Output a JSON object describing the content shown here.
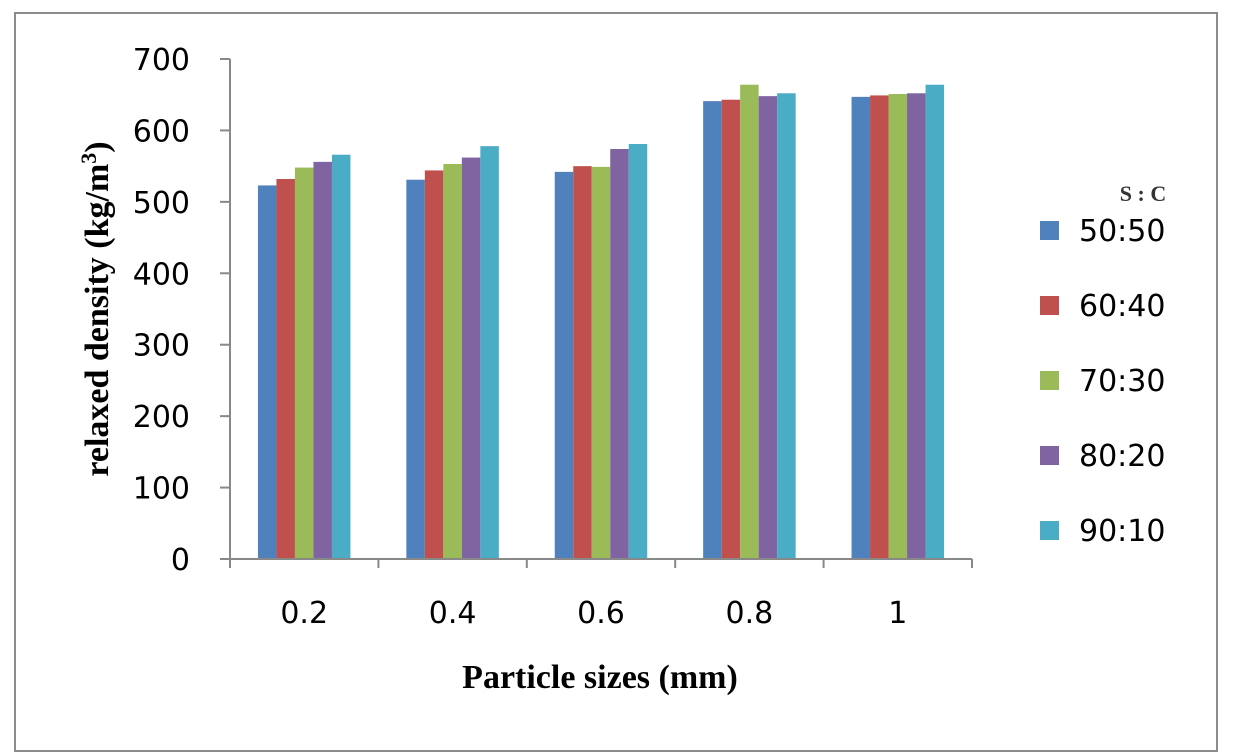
{
  "chart_data": {
    "type": "bar",
    "title": "",
    "xlabel": "Particle sizes (mm)",
    "ylabel_main": "relaxed density (kg/m",
    "ylabel_sup": "3",
    "ylabel_end": ")",
    "categories": [
      "0.2",
      "0.4",
      "0.6",
      "0.8",
      "1"
    ],
    "ylim": [
      0,
      700
    ],
    "yticks": [
      0,
      100,
      200,
      300,
      400,
      500,
      600,
      700
    ],
    "grid": false,
    "legend_title": "S : C",
    "legend_position": "right",
    "series": [
      {
        "name": "50:50",
        "color": "#4f81bd",
        "values": [
          523,
          531,
          542,
          641,
          647
        ]
      },
      {
        "name": "60:40",
        "color": "#c0504d",
        "values": [
          532,
          544,
          550,
          643,
          649
        ]
      },
      {
        "name": "70:30",
        "color": "#9bbb59",
        "values": [
          548,
          553,
          549,
          664,
          651
        ]
      },
      {
        "name": "80:20",
        "color": "#8064a2",
        "values": [
          556,
          562,
          574,
          648,
          652
        ]
      },
      {
        "name": "90:10",
        "color": "#4bacc6",
        "values": [
          566,
          578,
          581,
          652,
          664
        ]
      }
    ]
  }
}
